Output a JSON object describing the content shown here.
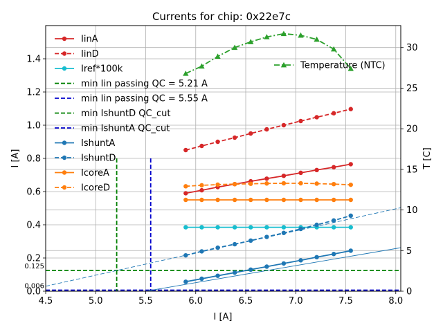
{
  "chart_data": {
    "type": "line",
    "title": "Currents for chip: 0x22e7c",
    "xlabel": "I [A]",
    "ylabel": "I [A]",
    "y2label": "T [C]",
    "xlim": [
      4.5,
      8.05
    ],
    "ylim": [
      0.0,
      1.6
    ],
    "y2lim": [
      0,
      32.7
    ],
    "xticks": [
      "4.5",
      "5.0",
      "5.5",
      "6.0",
      "6.5",
      "7.0",
      "7.5",
      "8.0"
    ],
    "yticks": [
      "0.0",
      "0.2",
      "0.4",
      "0.6",
      "0.8",
      "1.0",
      "1.2",
      "1.4"
    ],
    "y2ticks": [
      "0",
      "5",
      "10",
      "15",
      "20",
      "25",
      "30"
    ],
    "grid": true,
    "x": [
      5.9,
      6.06,
      6.22,
      6.39,
      6.55,
      6.71,
      6.88,
      7.05,
      7.21,
      7.38,
      7.55
    ],
    "series": [
      {
        "name": "IinA",
        "color": "#d62728",
        "dash": "solid",
        "marker": "circle",
        "axis": "left",
        "values": [
          0.59,
          0.608,
          0.627,
          0.645,
          0.662,
          0.678,
          0.695,
          0.713,
          0.73,
          0.747,
          0.765
        ]
      },
      {
        "name": "IinD",
        "color": "#d62728",
        "dash": "dashed",
        "marker": "circle",
        "axis": "left",
        "values": [
          0.85,
          0.875,
          0.9,
          0.925,
          0.95,
          0.975,
          1.0,
          1.025,
          1.048,
          1.072,
          1.097
        ]
      },
      {
        "name": "Iref*100k",
        "color": "#17becf",
        "dash": "solid",
        "marker": "circle",
        "axis": "left",
        "values": [
          0.385,
          0.385,
          0.385,
          0.385,
          0.385,
          0.385,
          0.385,
          0.385,
          0.385,
          0.385,
          0.385
        ]
      },
      {
        "name": "IshuntA",
        "color": "#1f77b4",
        "dash": "solid",
        "marker": "circle",
        "axis": "left",
        "values": [
          0.057,
          0.075,
          0.093,
          0.112,
          0.13,
          0.148,
          0.167,
          0.186,
          0.205,
          0.224,
          0.244
        ]
      },
      {
        "name": "IshuntD",
        "color": "#1f77b4",
        "dash": "dashed",
        "marker": "circle",
        "axis": "left",
        "values": [
          0.216,
          0.24,
          0.262,
          0.283,
          0.305,
          0.327,
          0.351,
          0.375,
          0.4,
          0.426,
          0.455
        ]
      },
      {
        "name": "IcoreA",
        "color": "#ff7f0e",
        "dash": "solid",
        "marker": "circle",
        "axis": "left",
        "values": [
          0.55,
          0.55,
          0.55,
          0.55,
          0.55,
          0.55,
          0.55,
          0.55,
          0.55,
          0.55,
          0.55
        ]
      },
      {
        "name": "IcoreD",
        "color": "#ff7f0e",
        "dash": "dashed",
        "marker": "circle",
        "axis": "left",
        "values": [
          0.632,
          0.638,
          0.642,
          0.645,
          0.647,
          0.649,
          0.65,
          0.65,
          0.648,
          0.645,
          0.641
        ]
      },
      {
        "name": "Temperature (NTC)",
        "color": "#2ca02c",
        "dash": "dashdot",
        "marker": "triangle",
        "axis": "right",
        "values": [
          26.8,
          27.7,
          28.9,
          30.0,
          30.7,
          31.3,
          31.7,
          31.5,
          31.0,
          29.8,
          27.4
        ]
      }
    ],
    "fit_lines": [
      {
        "color": "#1f77b4",
        "dash": "solid",
        "x": [
          5.5,
          8.05
        ],
        "y": [
          0.0,
          0.262
        ]
      },
      {
        "color": "#1f77b4",
        "dash": "dashed",
        "x": [
          4.5,
          8.05
        ],
        "y": [
          0.03,
          0.503
        ]
      }
    ],
    "vlines": [
      {
        "name": "min Iin passing QC = 5.21 A",
        "x": 5.21,
        "ymax": 0.8,
        "color": "#008000"
      },
      {
        "name": "min Iin passing QC = 5.55 A",
        "x": 5.55,
        "ymax": 0.8,
        "color": "#0000cc"
      }
    ],
    "hlines": [
      {
        "name": "min IshuntD QC_cut",
        "y": 0.125,
        "color": "#008000"
      },
      {
        "name": "min IshuntA QC_cut",
        "y": 0.006,
        "color": "#0000cc"
      }
    ],
    "annotations": [
      {
        "text": "0.125",
        "y": 0.125
      },
      {
        "text": "0.006",
        "y": 0.006
      }
    ],
    "legend_left": [
      {
        "label": "IinA",
        "color": "#d62728",
        "dash": "solid",
        "marker": "circle"
      },
      {
        "label": "IinD",
        "color": "#d62728",
        "dash": "dashed",
        "marker": "circle"
      },
      {
        "label": "Iref*100k",
        "color": "#17becf",
        "dash": "solid",
        "marker": "circle"
      },
      {
        "label": "min Iin passing QC = 5.21 A",
        "color": "#008000",
        "dash": "dashed",
        "marker": "none"
      },
      {
        "label": "min Iin passing QC = 5.55 A",
        "color": "#0000cc",
        "dash": "dashed",
        "marker": "none"
      },
      {
        "label": "min IshuntD QC_cut",
        "color": "#008000",
        "dash": "dashed",
        "marker": "none"
      },
      {
        "label": "min IshuntA QC_cut",
        "color": "#0000cc",
        "dash": "dashed",
        "marker": "none"
      },
      {
        "label": "IshuntA",
        "color": "#1f77b4",
        "dash": "solid",
        "marker": "circle"
      },
      {
        "label": "IshuntD",
        "color": "#1f77b4",
        "dash": "dashed",
        "marker": "circle"
      },
      {
        "label": "IcoreA",
        "color": "#ff7f0e",
        "dash": "solid",
        "marker": "circle"
      },
      {
        "label": "IcoreD",
        "color": "#ff7f0e",
        "dash": "dashed",
        "marker": "circle"
      }
    ],
    "legend_right": [
      {
        "label": "Temperature (NTC)",
        "color": "#2ca02c",
        "dash": "dashdot",
        "marker": "triangle"
      }
    ]
  }
}
